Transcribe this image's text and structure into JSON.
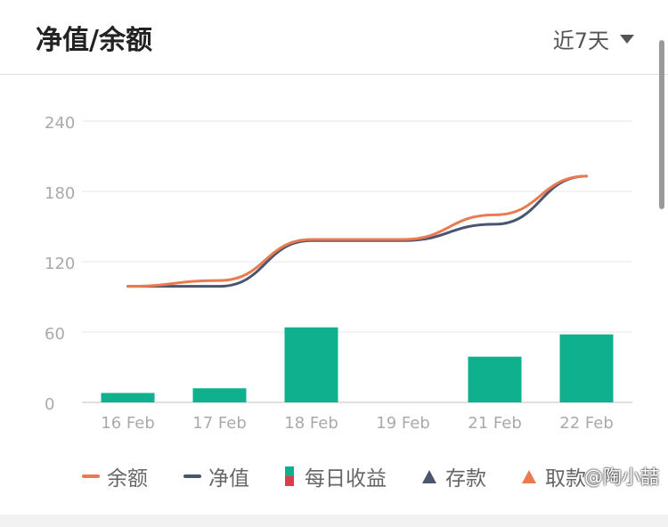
{
  "header": {
    "title": "净值/余额",
    "range_label": "近7天",
    "range_icon": "triangle-down-icon"
  },
  "colors": {
    "balance": "#ea7a50",
    "net_value": "#4a5670",
    "daily_income_up": "#0eb08e",
    "daily_income_down": "#dc3d4e",
    "deposit": "#4a5670",
    "withdraw": "#ea7a50"
  },
  "legend": {
    "balance": "余额",
    "net_value": "净值",
    "daily_income": "每日收益",
    "deposit": "存款",
    "withdraw": "取款"
  },
  "watermark": "@陶小喆",
  "chart_data": {
    "type": "line+bar",
    "categories": [
      "16 Feb",
      "17 Feb",
      "18 Feb",
      "19 Feb",
      "21 Feb",
      "22 Feb"
    ],
    "ylim": [
      0,
      240
    ],
    "yticks": [
      0,
      60,
      120,
      180,
      240
    ],
    "series": [
      {
        "name": "余额",
        "type": "line",
        "values": [
          99,
          104,
          139,
          139,
          160,
          193
        ]
      },
      {
        "name": "净值",
        "type": "line",
        "values": [
          99,
          99,
          138,
          138,
          152,
          193
        ]
      },
      {
        "name": "每日收益",
        "type": "bar",
        "values": [
          8,
          12,
          64,
          0,
          39,
          58
        ]
      }
    ],
    "grid": true,
    "legend_position": "bottom"
  }
}
